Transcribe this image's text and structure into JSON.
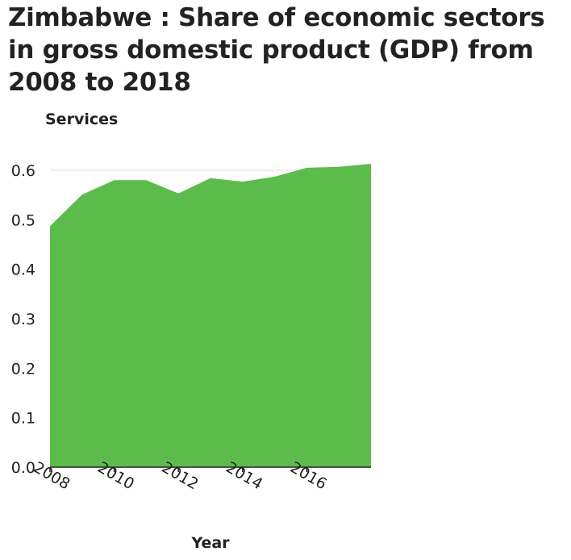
{
  "chart_data": {
    "type": "area",
    "title": "Zimbabwe : Share of economic sectors in gross domestic product (GDP) from 2008 to 2018",
    "ylabel": "Services",
    "xlabel": "Year",
    "x": [
      2008,
      2009,
      2010,
      2011,
      2012,
      2013,
      2014,
      2015,
      2016,
      2017,
      2018
    ],
    "values": [
      0.487,
      0.551,
      0.58,
      0.58,
      0.553,
      0.584,
      0.577,
      0.587,
      0.605,
      0.607,
      0.613
    ],
    "xlim": [
      2008,
      2018
    ],
    "ylim": [
      0,
      0.6
    ],
    "x_ticks": [
      "2008",
      "2010",
      "2012",
      "2014",
      "2016"
    ],
    "y_ticks": [
      "0.0",
      "0.1",
      "0.2",
      "0.3",
      "0.4",
      "0.5",
      "0.6"
    ],
    "fill_color": "#5bbc4b",
    "grid": "horizontal",
    "legend": "none"
  }
}
